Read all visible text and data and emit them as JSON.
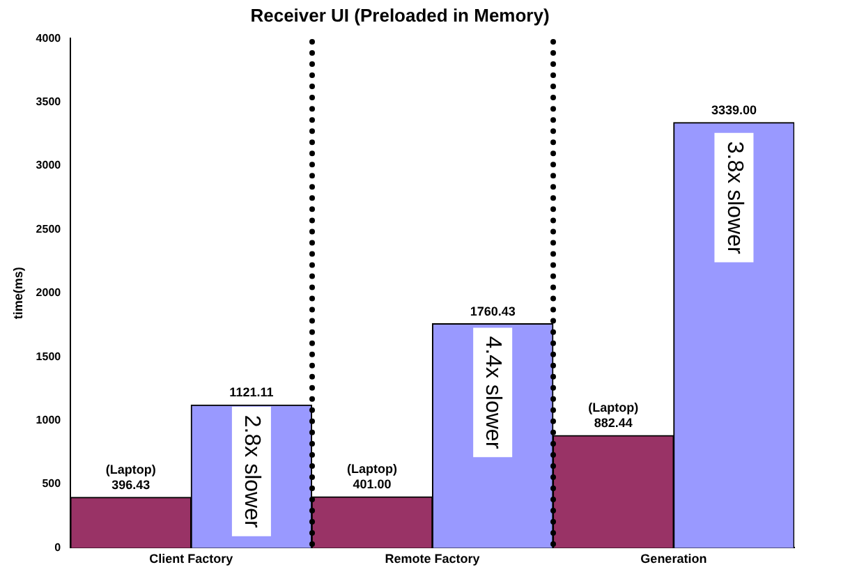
{
  "chart_data": {
    "type": "bar",
    "title": "Receiver UI (Preloaded in Memory)",
    "ylabel": "time(ms)",
    "categories": [
      "Client Factory",
      "Remote Factory",
      "Generation"
    ],
    "series": [
      {
        "name": "(Laptop)",
        "color": "#993366",
        "values": [
          396.43,
          401.0,
          882.44
        ],
        "value_labels": [
          "396.43",
          "401.00",
          "882.44"
        ]
      },
      {
        "color": "#9999ff",
        "values": [
          1121.11,
          1760.43,
          3339.0
        ],
        "value_labels": [
          "1121.11",
          "1760.43",
          "3339.00"
        ]
      }
    ],
    "ylim": [
      0,
      4000
    ],
    "yticks": [
      0,
      500,
      1000,
      1500,
      2000,
      2500,
      3000,
      3500,
      4000
    ],
    "grid": false,
    "legend": false,
    "annotations": [
      {
        "text": "2.8x slower",
        "x": "Client Factory",
        "y": 600
      },
      {
        "text": "4.4x slower",
        "x": "Remote Factory",
        "y": 1220
      },
      {
        "text": "3.8x slower",
        "x": "Generation",
        "y": 2750
      }
    ]
  }
}
